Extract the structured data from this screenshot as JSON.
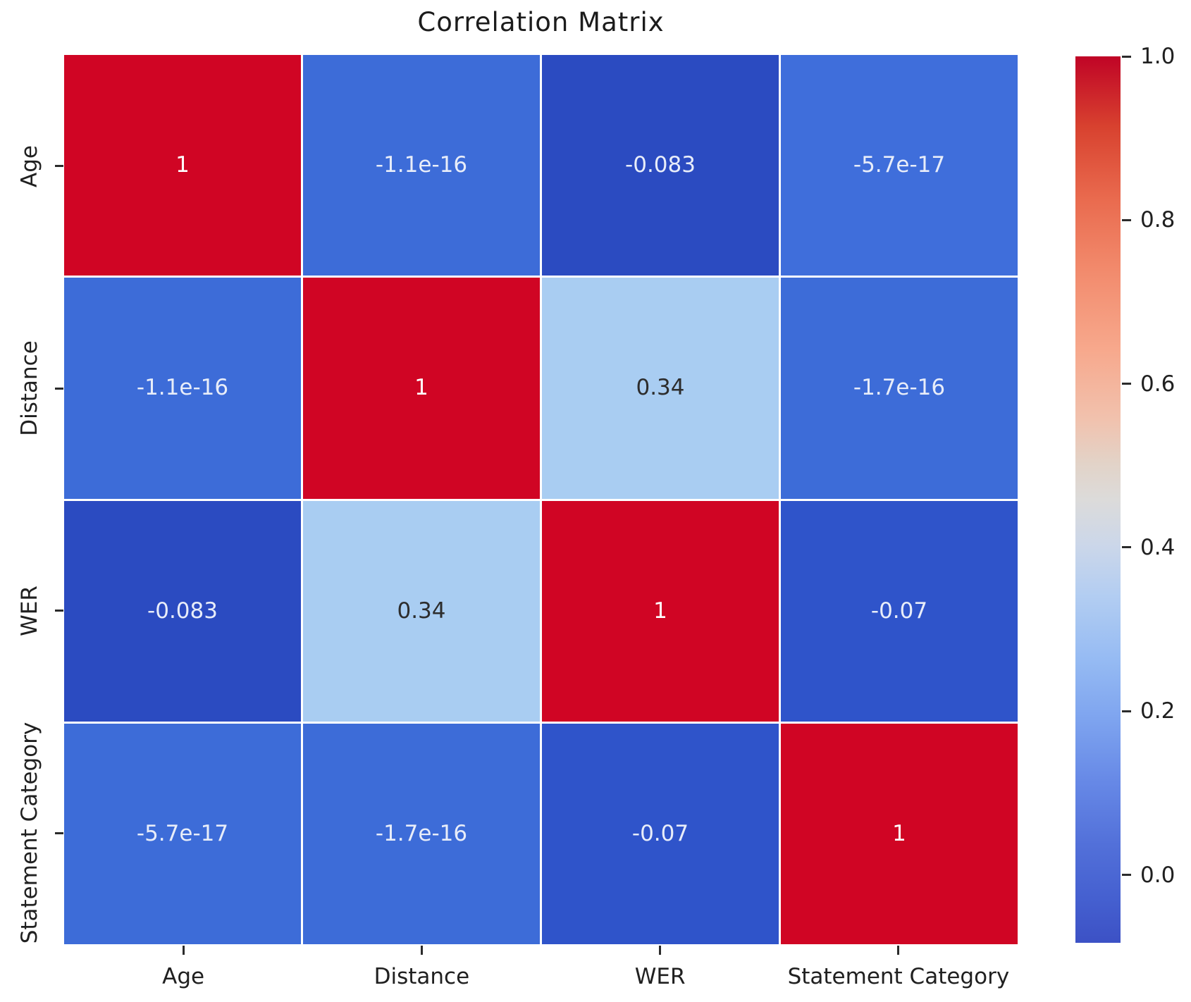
{
  "title": "Correlation Matrix",
  "chart_data": {
    "type": "heatmap",
    "title": "Correlation Matrix",
    "x_categories": [
      "Age",
      "Distance",
      "WER",
      "Statement Category"
    ],
    "y_categories": [
      "Age",
      "Distance",
      "WER",
      "Statement Category"
    ],
    "values": [
      [
        1,
        -1.1e-16,
        -0.083,
        -5.7e-17
      ],
      [
        -1.1e-16,
        1,
        0.34,
        -1.7e-16
      ],
      [
        -0.083,
        0.34,
        1,
        -0.07
      ],
      [
        -5.7e-17,
        -1.7e-16,
        -0.07,
        1
      ]
    ],
    "cell_labels": [
      [
        "1",
        "-1.1e-16",
        "-0.083",
        "-5.7e-17"
      ],
      [
        "-1.1e-16",
        "1",
        "0.34",
        "-1.7e-16"
      ],
      [
        "-0.083",
        "0.34",
        "1",
        "-0.07"
      ],
      [
        "-5.7e-17",
        "-1.7e-16",
        "-0.07",
        "1"
      ]
    ],
    "cell_colors": [
      [
        "#d00524",
        "#3d6cd8",
        "#2b4bc1",
        "#3f6edb"
      ],
      [
        "#3d6cd8",
        "#d00524",
        "#a9cdf2",
        "#3d6cd8"
      ],
      [
        "#2b4bc1",
        "#a9cdf2",
        "#d00524",
        "#2f54ca"
      ],
      [
        "#3d6cd8",
        "#3d6cd8",
        "#2f54ca",
        "#d00524"
      ]
    ],
    "cell_text_colors": [
      [
        "#ffffff",
        "#e8edf9",
        "#e8edf9",
        "#e8edf9"
      ],
      [
        "#e8edf9",
        "#ffffff",
        "#2d2d2d",
        "#e8edf9"
      ],
      [
        "#e8edf9",
        "#2d2d2d",
        "#ffffff",
        "#e8edf9"
      ],
      [
        "#e8edf9",
        "#e8edf9",
        "#e8edf9",
        "#ffffff"
      ]
    ],
    "colorbar": {
      "colormap": "coolwarm",
      "vmin": -0.083,
      "vmax": 1.0,
      "tick_labels": [
        "1.0",
        "0.8",
        "0.6",
        "0.4",
        "0.2",
        "0.0"
      ],
      "tick_values": [
        1.0,
        0.8,
        0.6,
        0.4,
        0.2,
        0.0
      ],
      "position": "right"
    },
    "layout": {
      "grid": "off",
      "cell_gridline_color": "#ffffff",
      "background": "#ffffff"
    }
  }
}
